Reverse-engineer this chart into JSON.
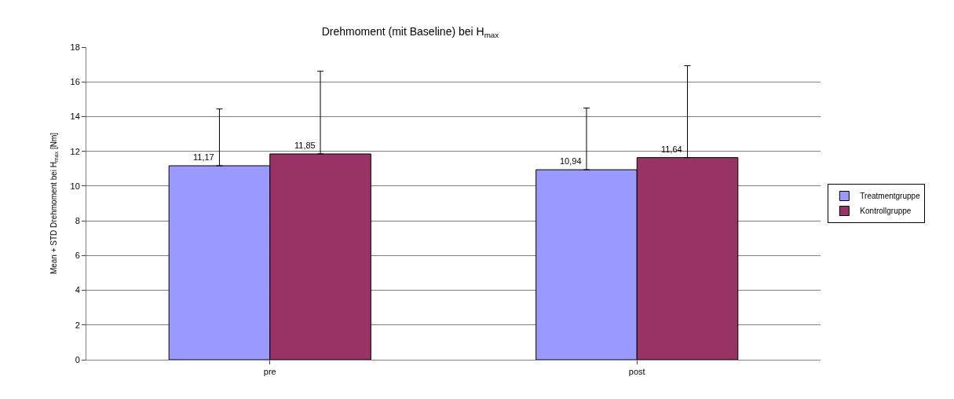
{
  "chart_data": {
    "type": "bar",
    "title": "Drehmoment (mit Baseline) bei H$_{max}$",
    "ylabel": "Mean + STD Drehmoment bei H$_{max}$ [Nm]",
    "categories": [
      "pre",
      "post"
    ],
    "series": [
      {
        "name": "Treatmentgruppe",
        "color": "#9999ff",
        "values": [
          11.17,
          10.94
        ],
        "value_labels": [
          "11,17",
          "10,94"
        ],
        "errors": [
          [
            11.17,
            14.44
          ],
          [
            10.94,
            14.49
          ]
        ]
      },
      {
        "name": "Kontrollgruppe",
        "color": "#993366",
        "values": [
          11.85,
          11.64
        ],
        "value_labels": [
          "11,85",
          "11,64"
        ],
        "errors": [
          [
            11.85,
            16.61
          ],
          [
            11.64,
            16.93
          ]
        ]
      }
    ],
    "ylim": [
      0,
      18
    ],
    "yticks": [
      0,
      2,
      4,
      6,
      8,
      10,
      12,
      14,
      16,
      18
    ],
    "grid": "y",
    "legend": "right"
  }
}
